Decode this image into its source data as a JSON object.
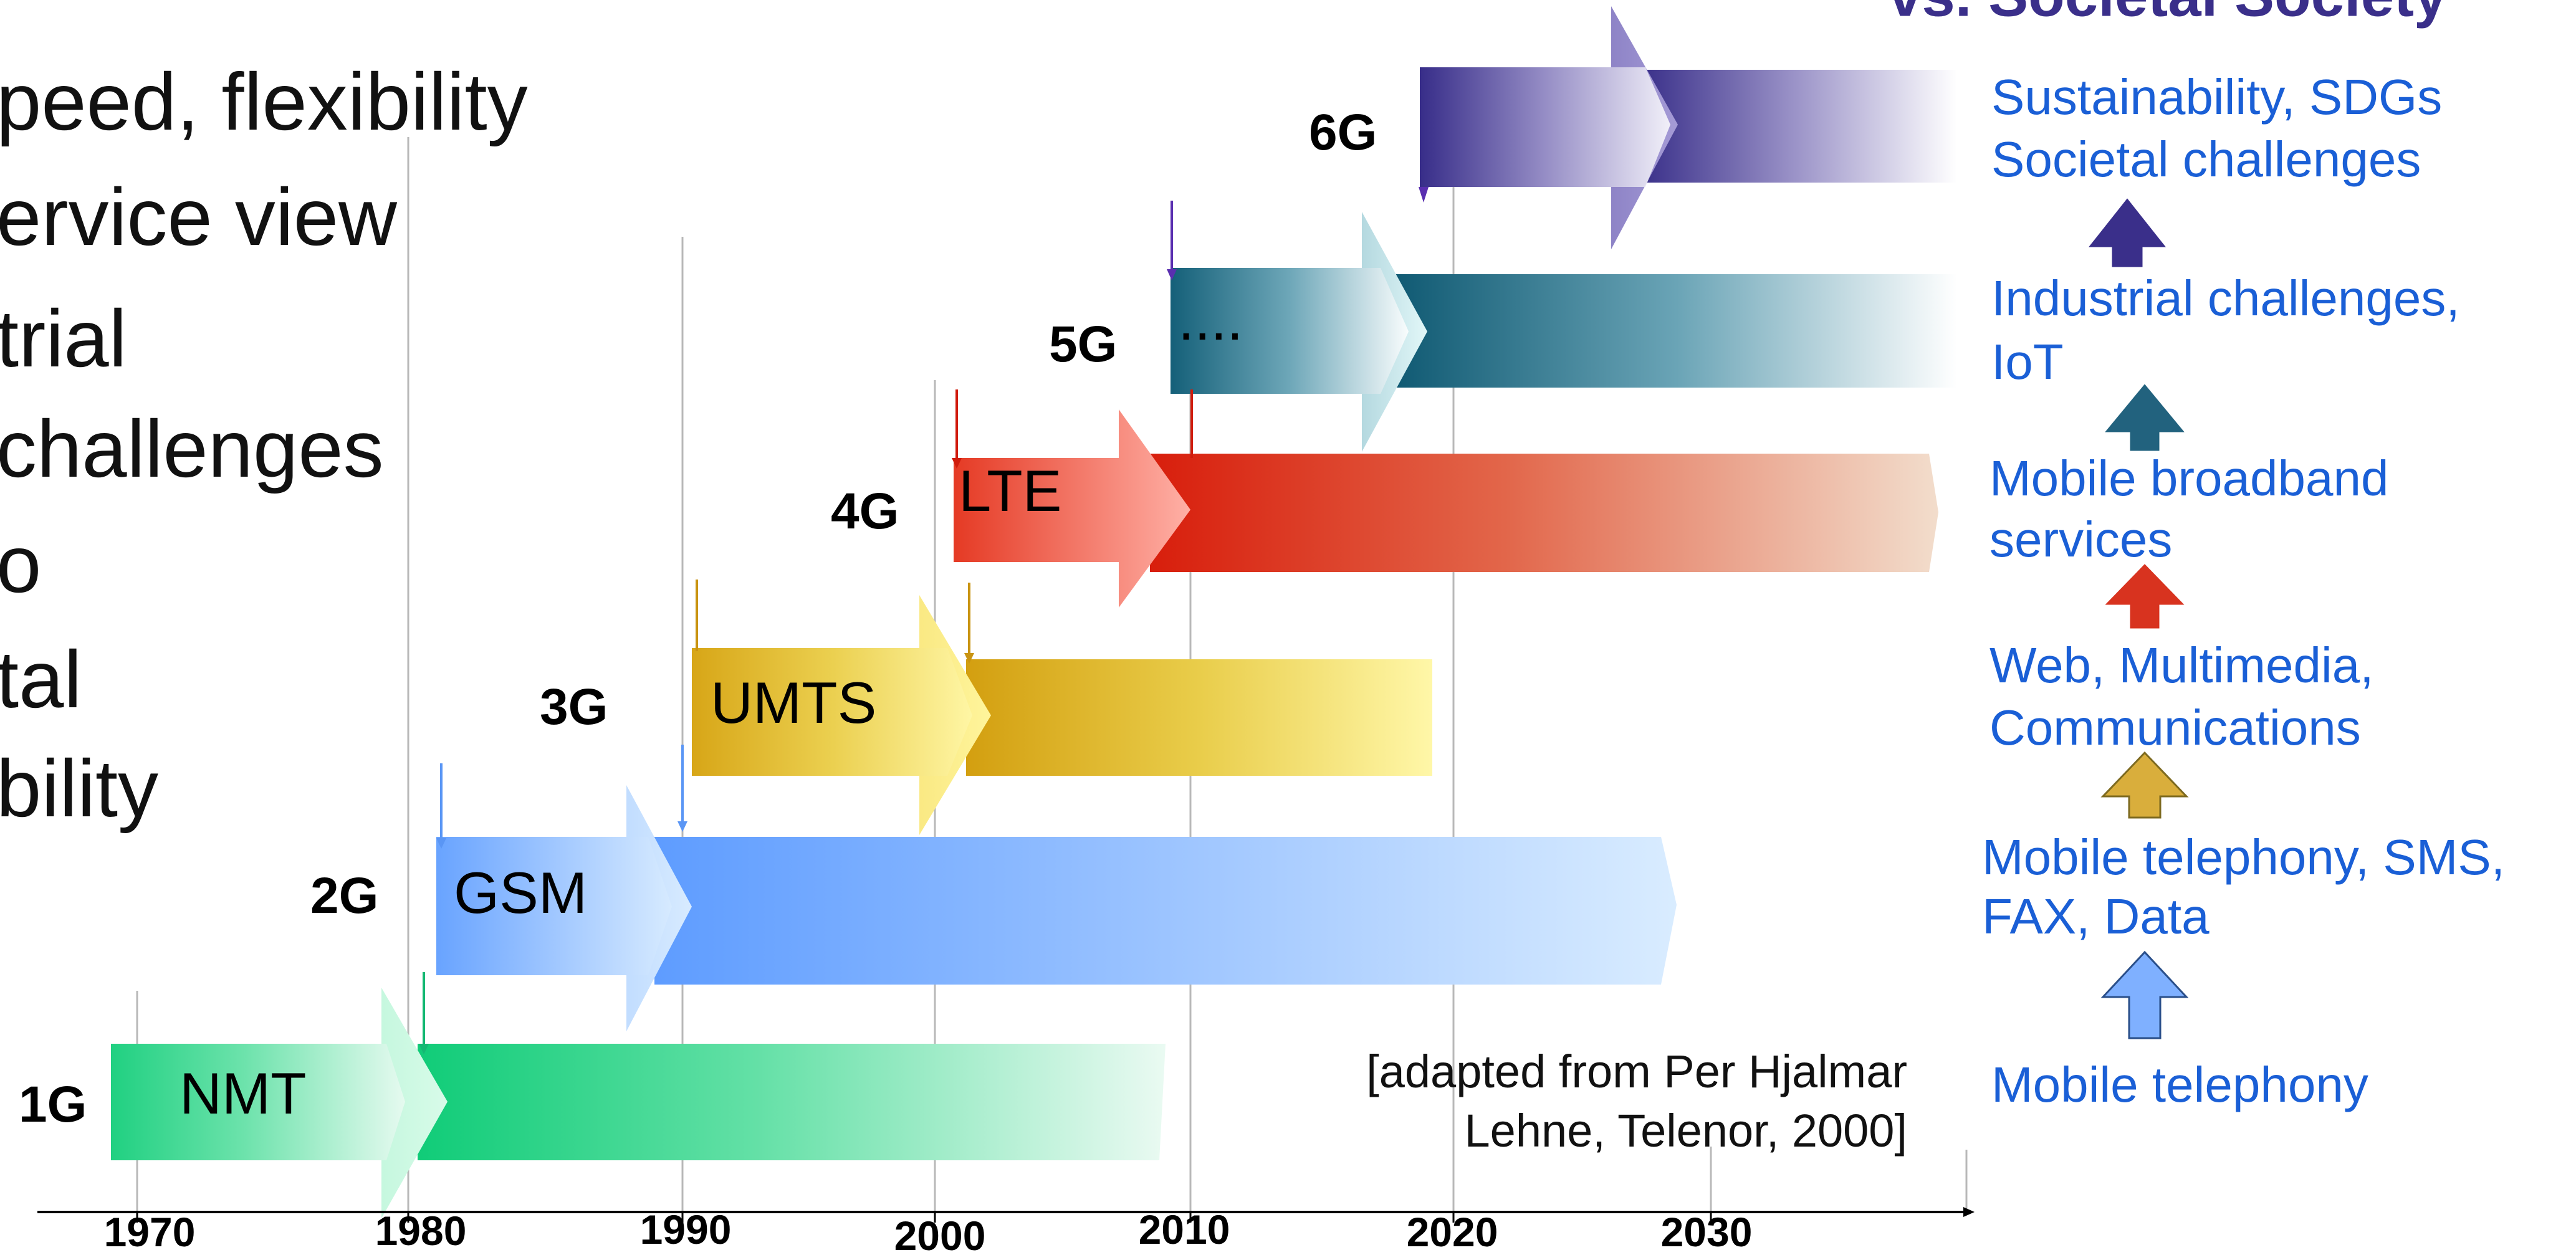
{
  "left_bullets": [
    "peed, flexibility",
    "ervice view",
    "trial",
    "challenges",
    "o",
    "tal",
    "bility"
  ],
  "header_partial": "vs. Societal Society",
  "generations": [
    {
      "label": "1G",
      "system": "NMT",
      "color": "#1fd084"
    },
    {
      "label": "2G",
      "system": "GSM",
      "color": "#6fa8ff"
    },
    {
      "label": "3G",
      "system": "UMTS",
      "color": "#d9a81c"
    },
    {
      "label": "4G",
      "system": "LTE",
      "color": "#d92a18"
    },
    {
      "label": "5G",
      "system": "....",
      "color": "#1d6079"
    },
    {
      "label": "6G",
      "system": "",
      "color": "#3a2f8a"
    }
  ],
  "years": [
    "1970",
    "1980",
    "1990",
    "2000",
    "2010",
    "2020",
    "2030"
  ],
  "citation": {
    "line1": "[adapted from Per Hjalmar",
    "line2": "Lehne, Telenor, 2000]"
  },
  "services": [
    {
      "line1": "Sustainability, SDGs",
      "line2": "Societal challenges",
      "arrow_color": "#3a2f8a"
    },
    {
      "line1": "Industrial challenges,",
      "line2": "IoT",
      "arrow_color": "#22627e"
    },
    {
      "line1": "Mobile broadband",
      "line2": "services",
      "arrow_color": "#d8331f"
    },
    {
      "line1": "Web, Multimedia,",
      "line2": "Communications",
      "arrow_color": "#d9ae3c"
    },
    {
      "line1": "Mobile telephony, SMS,",
      "line2": "FAX, Data",
      "arrow_color": "#7fb0ff"
    },
    {
      "line1": "Mobile telephony",
      "line2": ""
    }
  ]
}
